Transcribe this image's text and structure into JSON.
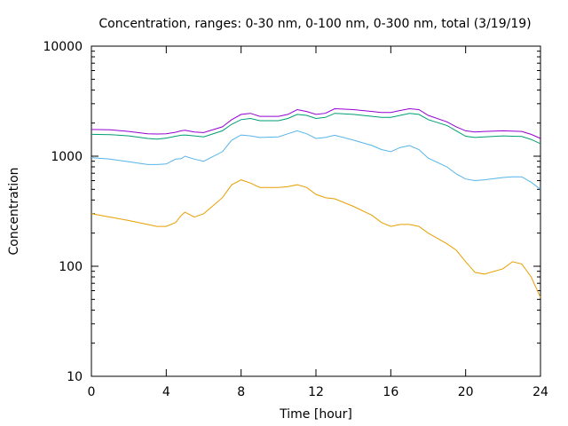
{
  "chart_data": {
    "type": "line",
    "title": "Concentration, ranges: 0-30 nm, 0-100 nm, 0-300 nm, total (3/19/19)",
    "xlabel": "Time [hour]",
    "ylabel": "Concentration",
    "xlim": [
      0,
      24
    ],
    "ylim": [
      10,
      10000
    ],
    "yscale": "log",
    "grid": false,
    "legend": "none",
    "x_ticks": [
      0,
      4,
      8,
      12,
      16,
      20,
      24
    ],
    "x_tick_labels": [
      "0",
      "4",
      "8",
      "12",
      "16",
      "20",
      "24"
    ],
    "y_ticks": [
      10,
      100,
      1000,
      10000
    ],
    "y_tick_labels": [
      "10",
      "100",
      "1000",
      "10000"
    ],
    "x": [
      0,
      1,
      2,
      3,
      3.5,
      4,
      4.5,
      4.8,
      5,
      5.5,
      6,
      7,
      7.5,
      8,
      8.5,
      9,
      10,
      10.5,
      11,
      11.5,
      12,
      12.5,
      13,
      14,
      15,
      15.5,
      16,
      16.5,
      17,
      17.5,
      18,
      19,
      19.5,
      20,
      20.5,
      21,
      22,
      22.5,
      23,
      23.5,
      24
    ],
    "series": [
      {
        "color": "#e69f00",
        "values": [
          300,
          280,
          260,
          240,
          230,
          230,
          250,
          290,
          310,
          280,
          300,
          420,
          550,
          610,
          570,
          520,
          520,
          530,
          550,
          520,
          450,
          420,
          410,
          350,
          290,
          250,
          230,
          240,
          240,
          230,
          200,
          160,
          140,
          110,
          88,
          85,
          95,
          110,
          105,
          80,
          52
        ]
      },
      {
        "color": "#56b4e9",
        "values": [
          970,
          940,
          890,
          840,
          840,
          850,
          940,
          950,
          1000,
          940,
          900,
          1100,
          1400,
          1560,
          1530,
          1480,
          1500,
          1600,
          1700,
          1600,
          1450,
          1480,
          1550,
          1400,
          1250,
          1150,
          1100,
          1200,
          1250,
          1150,
          960,
          800,
          690,
          620,
          600,
          610,
          640,
          650,
          650,
          580,
          500
        ]
      },
      {
        "color": "#009e73",
        "values": [
          1580,
          1570,
          1530,
          1450,
          1430,
          1460,
          1520,
          1550,
          1560,
          1530,
          1500,
          1700,
          1950,
          2150,
          2200,
          2100,
          2100,
          2200,
          2400,
          2350,
          2200,
          2250,
          2450,
          2400,
          2300,
          2250,
          2250,
          2350,
          2450,
          2400,
          2150,
          1900,
          1700,
          1520,
          1480,
          1500,
          1530,
          1520,
          1510,
          1420,
          1300
        ]
      },
      {
        "color": "#9400d3",
        "values": [
          1750,
          1740,
          1680,
          1600,
          1590,
          1600,
          1650,
          1700,
          1720,
          1660,
          1640,
          1850,
          2150,
          2400,
          2450,
          2300,
          2300,
          2400,
          2650,
          2550,
          2400,
          2450,
          2700,
          2650,
          2550,
          2500,
          2500,
          2600,
          2700,
          2650,
          2350,
          2050,
          1850,
          1700,
          1660,
          1680,
          1700,
          1690,
          1680,
          1580,
          1450
        ]
      }
    ]
  }
}
